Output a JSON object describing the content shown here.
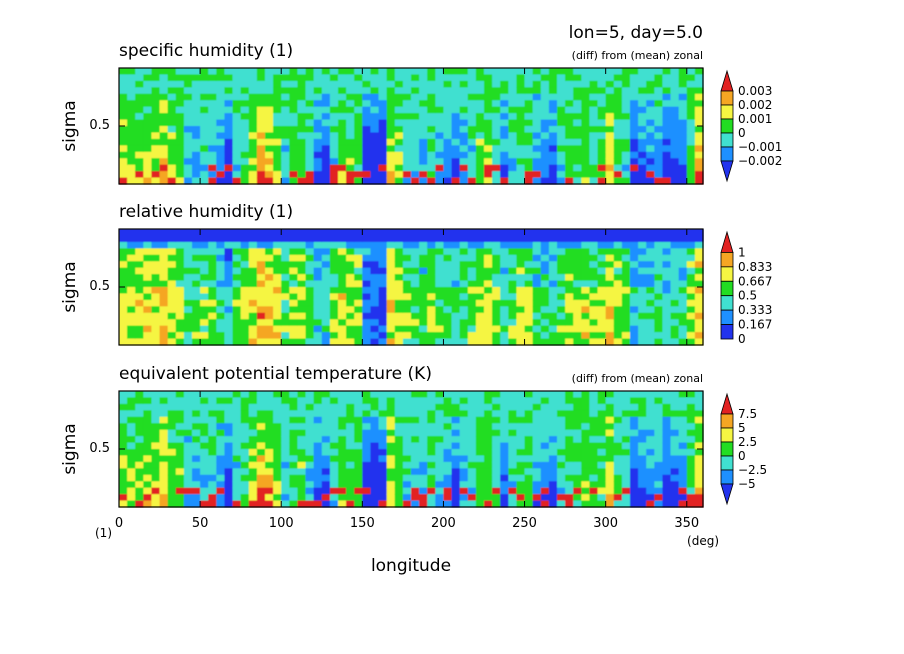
{
  "header": {
    "lon_day": "lon=5, day=5.0"
  },
  "colors": {
    "levels": [
      "#2233ee",
      "#1e90ff",
      "#40e0d0",
      "#22dd22",
      "#f5f542",
      "#f5a623",
      "#e22222"
    ]
  },
  "chart_data": [
    {
      "type": "heatmap",
      "title": "specific humidity (1)",
      "subtitle": "(diff) from (mean) zonal",
      "xlabel": "",
      "ylabel": "sigma",
      "xlim": [
        0,
        360
      ],
      "ylim": [
        1.0,
        0.0
      ],
      "yticks": [
        0.5
      ],
      "ytick_labels": [
        "0.5"
      ],
      "colorbar": {
        "labels": [
          "0.003",
          "0.002",
          "0.001",
          "0",
          "−0.001",
          "−0.002"
        ],
        "arrow_top": true,
        "arrow_bottom": true
      }
    },
    {
      "type": "heatmap",
      "title": "relative humidity (1)",
      "subtitle": "",
      "xlabel": "",
      "ylabel": "sigma",
      "xlim": [
        0,
        360
      ],
      "ylim": [
        1.0,
        0.0
      ],
      "yticks": [
        0.5
      ],
      "ytick_labels": [
        "0.5"
      ],
      "colorbar": {
        "labels": [
          "1",
          "0.833",
          "0.667",
          "0.5",
          "0.333",
          "0.167",
          "0"
        ],
        "arrow_top": true,
        "arrow_bottom": false
      }
    },
    {
      "type": "heatmap",
      "title": "equivalent potential temperature (K)",
      "subtitle": "(diff) from (mean) zonal",
      "xlabel": "longitude",
      "xunit": "(deg)",
      "yunit": "(1)",
      "ylabel": "sigma",
      "xlim": [
        0,
        360
      ],
      "ylim": [
        1.0,
        0.0
      ],
      "xticks": [
        0,
        50,
        100,
        150,
        200,
        250,
        300,
        350
      ],
      "xtick_labels": [
        "0",
        "50",
        "100",
        "150",
        "200",
        "250",
        "300",
        "350"
      ],
      "yticks": [
        0.5
      ],
      "ytick_labels": [
        "0.5"
      ],
      "colorbar": {
        "labels": [
          "7.5",
          "5",
          "2.5",
          "0",
          "−2.5",
          "−5"
        ],
        "arrow_top": true,
        "arrow_bottom": true
      }
    }
  ]
}
